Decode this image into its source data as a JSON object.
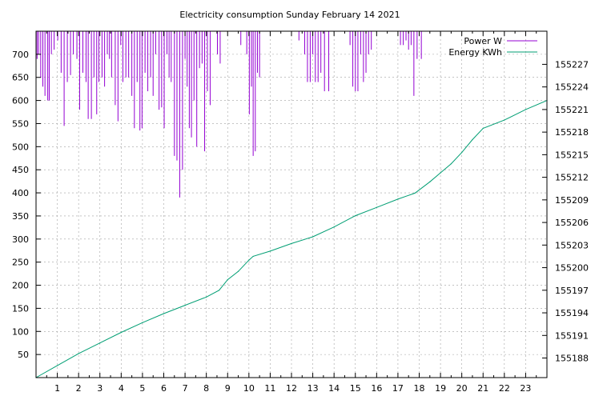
{
  "chart_data": {
    "type": "line",
    "title": "Electricity consumption Sunday February 14 2021",
    "x_ticks": [
      "1",
      "2",
      "3",
      "4",
      "5",
      "6",
      "7",
      "8",
      "9",
      "10",
      "11",
      "12",
      "13",
      "14",
      "15",
      "16",
      "17",
      "18",
      "19",
      "20",
      "21",
      "22",
      "23"
    ],
    "xlim": [
      0,
      24
    ],
    "y_left_ticks": [
      "50",
      "100",
      "150",
      "200",
      "250",
      "300",
      "350",
      "400",
      "450",
      "500",
      "550",
      "600",
      "650",
      "700"
    ],
    "ylim_left": [
      0,
      750
    ],
    "y_right_ticks": [
      "155188",
      "155191",
      "155194",
      "155197",
      "155200",
      "155203",
      "155206",
      "155209",
      "155212",
      "155215",
      "155218",
      "155221",
      "155224",
      "155227"
    ],
    "ylim_right": [
      155185.4,
      155231.4
    ],
    "grid": true,
    "legend_position": "top-right",
    "colors": {
      "power": "#9400d3",
      "energy": "#009e73"
    },
    "series": [
      {
        "name": "Power W",
        "axis": "left",
        "style": "impulses",
        "x": [
          0.05,
          0.12,
          0.22,
          0.32,
          0.42,
          0.55,
          0.62,
          0.72,
          0.85,
          1.02,
          1.18,
          1.32,
          1.47,
          1.62,
          1.75,
          1.92,
          2.05,
          2.2,
          2.35,
          2.45,
          2.6,
          2.72,
          2.85,
          2.95,
          3.1,
          3.22,
          3.35,
          3.45,
          3.55,
          3.72,
          3.85,
          3.98,
          4.08,
          4.22,
          4.35,
          4.5,
          4.62,
          4.75,
          4.88,
          4.98,
          5.12,
          5.25,
          5.38,
          5.5,
          5.62,
          5.78,
          5.9,
          6.02,
          6.15,
          6.25,
          6.35,
          6.5,
          6.62,
          6.75,
          6.88,
          7.0,
          7.1,
          7.2,
          7.3,
          7.42,
          7.55,
          7.68,
          7.8,
          7.92,
          8.05,
          8.18,
          8.3,
          8.42,
          8.52,
          8.65,
          8.78,
          8.92,
          9.05,
          9.2,
          9.35,
          9.5,
          9.62,
          9.78,
          9.9,
          10.02,
          10.12,
          10.2,
          10.3,
          10.4,
          10.5,
          10.62,
          10.72,
          10.85,
          10.95,
          11.1,
          11.3,
          11.5,
          11.7,
          11.95,
          12.1,
          12.22,
          12.35,
          12.5,
          12.62,
          12.75,
          12.88,
          13.0,
          13.12,
          13.25,
          13.38,
          13.55,
          13.75,
          13.95,
          14.15,
          14.35,
          14.5,
          14.62,
          14.75,
          14.88,
          15.0,
          15.12,
          15.25,
          15.38,
          15.5,
          15.62,
          15.75,
          15.9,
          16.1,
          16.3,
          16.5,
          16.7,
          16.9,
          17.0,
          17.12,
          17.25,
          17.38,
          17.5,
          17.62,
          17.75,
          17.9,
          18.1,
          18.4,
          18.7,
          19.0,
          19.3,
          19.6,
          19.9,
          20.2,
          20.5,
          20.8,
          21.1,
          21.4,
          21.7,
          22.0,
          22.3,
          22.6,
          22.9,
          23.2,
          23.5,
          23.8
        ],
        "values": [
          690,
          700,
          650,
          630,
          610,
          600,
          600,
          700,
          710,
          730,
          660,
          545,
          640,
          655,
          700,
          690,
          580,
          660,
          640,
          560,
          560,
          650,
          570,
          640,
          650,
          630,
          700,
          690,
          650,
          590,
          555,
          720,
          640,
          650,
          650,
          610,
          540,
          640,
          535,
          540,
          660,
          620,
          650,
          610,
          700,
          580,
          585,
          540,
          700,
          650,
          640,
          480,
          470,
          390,
          450,
          690,
          630,
          540,
          520,
          600,
          500,
          670,
          680,
          490,
          620,
          590,
          750,
          750,
          700,
          680,
          750,
          750,
          750,
          750,
          750,
          750,
          720,
          750,
          700,
          570,
          630,
          480,
          490,
          660,
          650,
          750,
          750,
          750,
          750,
          750,
          750,
          750,
          750,
          750,
          750,
          750,
          730,
          750,
          700,
          640,
          640,
          700,
          640,
          640,
          660,
          620,
          620,
          750,
          750,
          750,
          750,
          750,
          720,
          630,
          620,
          620,
          700,
          640,
          660,
          700,
          710,
          750,
          750,
          750,
          750,
          750,
          750,
          750,
          720,
          720,
          730,
          710,
          720,
          610,
          690,
          690,
          750,
          750,
          750,
          750,
          750,
          750,
          750,
          750,
          750,
          750,
          750,
          750,
          750,
          750,
          750,
          750,
          750,
          750,
          750
        ]
      },
      {
        "name": "Energy KWh",
        "axis": "right",
        "style": "line",
        "x": [
          0,
          1,
          2,
          3,
          4,
          5,
          6,
          7,
          8,
          8.6,
          9,
          9.5,
          10,
          10.2,
          11,
          12,
          13,
          14,
          15,
          16,
          17,
          17.8,
          18.5,
          19,
          19.5,
          20,
          20.5,
          21,
          22,
          23,
          24
        ],
        "values": [
          155185.4,
          155187.0,
          155188.6,
          155190.0,
          155191.4,
          155192.7,
          155193.9,
          155195.0,
          155196.1,
          155197.0,
          155198.4,
          155199.5,
          155201.0,
          155201.5,
          155202.2,
          155203.2,
          155204.1,
          155205.4,
          155206.9,
          155208.0,
          155209.1,
          155209.9,
          155211.4,
          155212.6,
          155213.8,
          155215.3,
          155217.0,
          155218.5,
          155219.6,
          155221.0,
          155222.2
        ]
      }
    ]
  }
}
